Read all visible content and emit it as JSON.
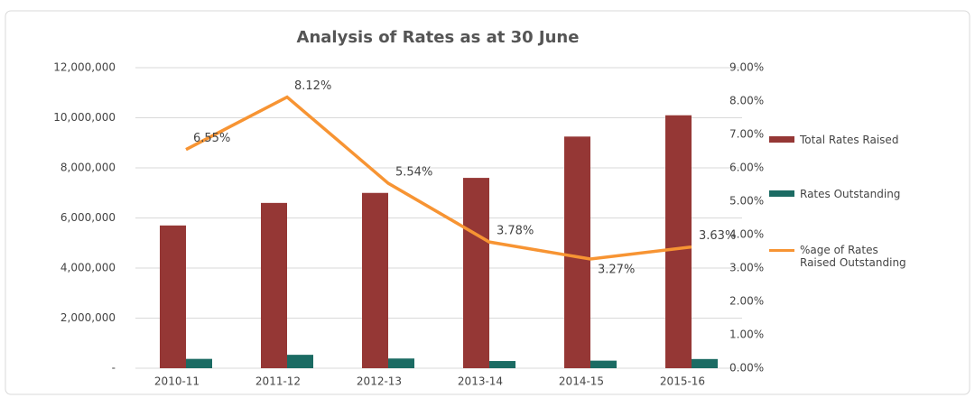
{
  "chart_data": {
    "type": "bar-line",
    "title": "Analysis of Rates as at 30 June",
    "categories": [
      "2010-11",
      "2011-12",
      "2012-13",
      "2013-14",
      "2014-15",
      "2015-16"
    ],
    "series": [
      {
        "name": "Total Rates Raised",
        "color": "#953735",
        "type": "bar",
        "values": [
          5700000,
          6600000,
          7000000,
          7600000,
          9250000,
          10100000
        ]
      },
      {
        "name": "Rates Outstanding",
        "color": "#1b6b63",
        "type": "bar",
        "values": [
          373000,
          536000,
          388000,
          287000,
          302000,
          367000
        ]
      },
      {
        "name": "%age of Rates Raised Outstanding",
        "color": "#f79433",
        "type": "line",
        "axis": "y2",
        "values": [
          6.55,
          8.12,
          5.54,
          3.78,
          3.27,
          3.63
        ],
        "value_labels": [
          "6.55%",
          "8.12%",
          "5.54%",
          "3.78%",
          "3.27%",
          "3.63%"
        ]
      }
    ],
    "ylim": [
      0,
      12000000
    ],
    "yticks": [
      {
        "value": 0,
        "label": "-"
      },
      {
        "value": 2000000,
        "label": "2,000,000"
      },
      {
        "value": 4000000,
        "label": "4,000,000"
      },
      {
        "value": 6000000,
        "label": "6,000,000"
      },
      {
        "value": 8000000,
        "label": "8,000,000"
      },
      {
        "value": 10000000,
        "label": "10,000,000"
      },
      {
        "value": 12000000,
        "label": "12,000,000"
      }
    ],
    "y2lim": [
      0,
      9
    ],
    "y2ticks": [
      {
        "value": 0,
        "label": "0.00%"
      },
      {
        "value": 1,
        "label": "1.00%"
      },
      {
        "value": 2,
        "label": "2.00%"
      },
      {
        "value": 3,
        "label": "3.00%"
      },
      {
        "value": 4,
        "label": "4.00%"
      },
      {
        "value": 5,
        "label": "5.00%"
      },
      {
        "value": 6,
        "label": "6.00%"
      },
      {
        "value": 7,
        "label": "7.00%"
      },
      {
        "value": 8,
        "label": "8.00%"
      },
      {
        "value": 9,
        "label": "9.00%"
      }
    ],
    "grid": true,
    "legend": "right"
  }
}
